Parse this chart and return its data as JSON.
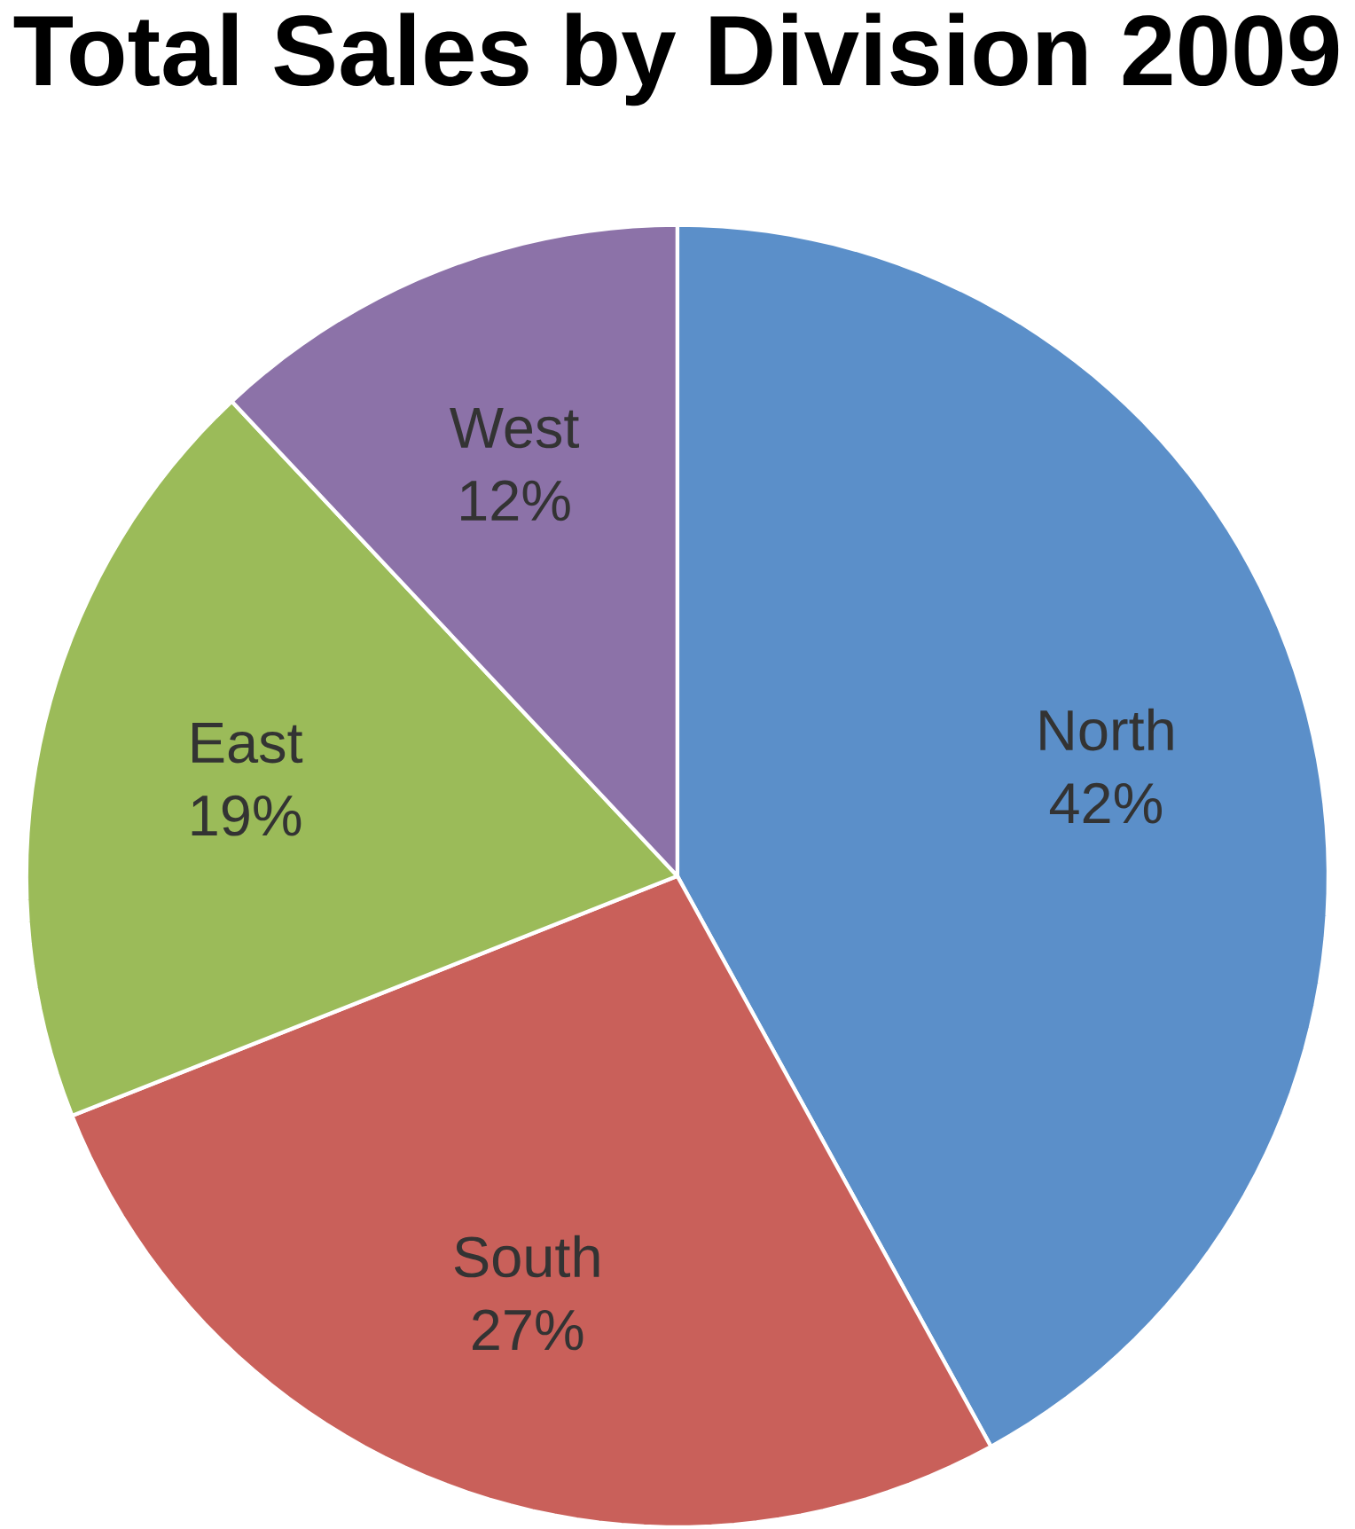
{
  "chart_data": {
    "type": "pie",
    "title": "Total Sales by Division 2009",
    "categories": [
      "North",
      "South",
      "East",
      "West"
    ],
    "values": [
      42,
      27,
      19,
      12
    ],
    "value_labels": [
      "42%",
      "27%",
      "19%",
      "12%"
    ],
    "colors": [
      "#5b8fc9",
      "#c9605a",
      "#9bbb59",
      "#8c72a8"
    ]
  }
}
